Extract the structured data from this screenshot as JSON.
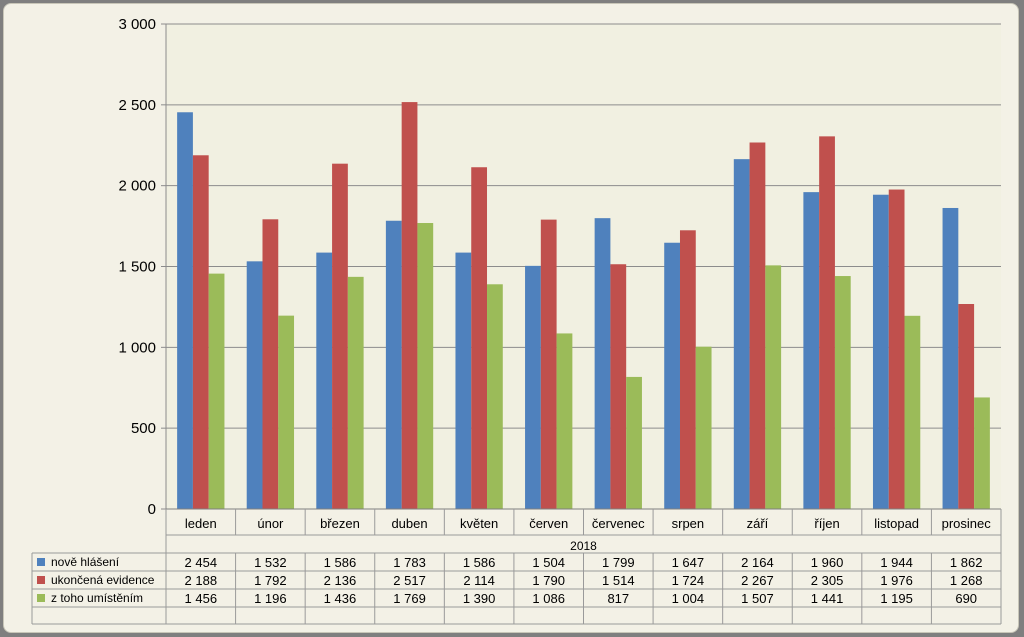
{
  "chart_data": {
    "type": "bar",
    "group_label": "2018",
    "categories": [
      "leden",
      "únor",
      "březen",
      "duben",
      "květen",
      "červen",
      "červenec",
      "srpen",
      "září",
      "říjen",
      "listopad",
      "prosinec"
    ],
    "series": [
      {
        "name": "nově hlášení",
        "color": "#4f81bd",
        "values": [
          2454,
          1532,
          1586,
          1783,
          1586,
          1504,
          1799,
          1647,
          2164,
          1960,
          1944,
          1862
        ]
      },
      {
        "name": "ukončená evidence",
        "color": "#c0504d",
        "values": [
          2188,
          1792,
          2136,
          2517,
          2114,
          1790,
          1514,
          1724,
          2267,
          2305,
          1976,
          1268
        ]
      },
      {
        "name": "z toho umístěním",
        "color": "#9bbb59",
        "values": [
          1456,
          1196,
          1436,
          1769,
          1390,
          1086,
          817,
          1004,
          1507,
          1441,
          1195,
          690
        ]
      }
    ],
    "table": [
      [
        "2 454",
        "1 532",
        "1 586",
        "1 783",
        "1 586",
        "1 504",
        "1 799",
        "1 647",
        "2 164",
        "1 960",
        "1 944",
        "1 862"
      ],
      [
        "2 188",
        "1 792",
        "2 136",
        "2 517",
        "2 114",
        "1 790",
        "1 514",
        "1 724",
        "2 267",
        "2 305",
        "1 976",
        "1 268"
      ],
      [
        "1 456",
        "1 196",
        "1 436",
        "1 769",
        "1 390",
        "1 086",
        "817",
        "1 004",
        "1 507",
        "1 441",
        "1 195",
        "690"
      ]
    ],
    "ylim": [
      0,
      3000
    ],
    "yticks": [
      0,
      500,
      1000,
      1500,
      2000,
      2500,
      3000
    ],
    "ytick_labels": [
      "0",
      "500",
      "1 000",
      "1 500",
      "2 000",
      "2 500",
      "3 000"
    ],
    "grid": true,
    "legend": "data-table-left",
    "plot_background": "#f1f0e1"
  }
}
